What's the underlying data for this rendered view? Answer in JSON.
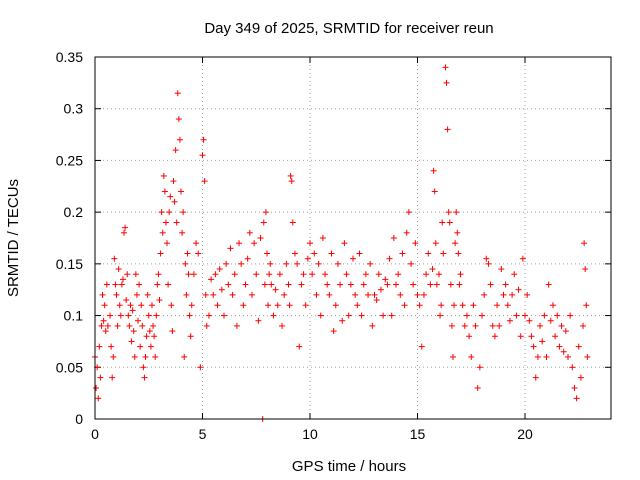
{
  "chart_data": {
    "type": "scatter",
    "title": "Day 349 of 2025, SRMTID for receiver reun",
    "xlabel": "GPS time / hours",
    "ylabel": "SRMTID / TECUs",
    "xlim": [
      0,
      24
    ],
    "ylim": [
      0,
      0.35
    ],
    "xticks": [
      0,
      5,
      10,
      15,
      20
    ],
    "xtick_labels": [
      "0",
      "5",
      "10",
      "15",
      "20"
    ],
    "yticks": [
      0,
      0.05,
      0.1,
      0.15,
      0.2,
      0.25,
      0.3,
      0.35
    ],
    "ytick_labels": [
      "0",
      "0.05",
      "0.1",
      "0.15",
      "0.2",
      "0.25",
      "0.3",
      "0.35"
    ],
    "grid": true,
    "marker": "+",
    "color": "#ff0000",
    "series": [
      {
        "name": "SRMTID",
        "points": [
          [
            0.0,
            0.06
          ],
          [
            0.05,
            0.03
          ],
          [
            0.1,
            0.05
          ],
          [
            0.15,
            0.02
          ],
          [
            0.2,
            0.07
          ],
          [
            0.25,
            0.04
          ],
          [
            0.3,
            0.09
          ],
          [
            0.35,
            0.12
          ],
          [
            0.4,
            0.095
          ],
          [
            0.45,
            0.11
          ],
          [
            0.5,
            0.085
          ],
          [
            0.55,
            0.13
          ],
          [
            0.6,
            0.09
          ],
          [
            0.7,
            0.1
          ],
          [
            0.75,
            0.07
          ],
          [
            0.8,
            0.04
          ],
          [
            0.85,
            0.06
          ],
          [
            0.9,
            0.155
          ],
          [
            0.95,
            0.13
          ],
          [
            1.0,
            0.12
          ],
          [
            1.05,
            0.09
          ],
          [
            1.1,
            0.145
          ],
          [
            1.15,
            0.11
          ],
          [
            1.2,
            0.1
          ],
          [
            1.25,
            0.13
          ],
          [
            1.3,
            0.135
          ],
          [
            1.35,
            0.18
          ],
          [
            1.4,
            0.185
          ],
          [
            1.45,
            0.115
          ],
          [
            1.5,
            0.14
          ],
          [
            1.55,
            0.1
          ],
          [
            1.6,
            0.09
          ],
          [
            1.65,
            0.11
          ],
          [
            1.7,
            0.075
          ],
          [
            1.75,
            0.105
          ],
          [
            1.8,
            0.085
          ],
          [
            1.85,
            0.06
          ],
          [
            1.9,
            0.14
          ],
          [
            1.95,
            0.12
          ],
          [
            2.0,
            0.095
          ],
          [
            2.05,
            0.13
          ],
          [
            2.1,
            0.07
          ],
          [
            2.15,
            0.11
          ],
          [
            2.2,
            0.09
          ],
          [
            2.25,
            0.05
          ],
          [
            2.3,
            0.04
          ],
          [
            2.35,
            0.06
          ],
          [
            2.4,
            0.08
          ],
          [
            2.45,
            0.12
          ],
          [
            2.5,
            0.1
          ],
          [
            2.55,
            0.085
          ],
          [
            2.6,
            0.07
          ],
          [
            2.65,
            0.11
          ],
          [
            2.7,
            0.09
          ],
          [
            2.75,
            0.08
          ],
          [
            2.8,
            0.06
          ],
          [
            2.85,
            0.1
          ],
          [
            2.9,
            0.13
          ],
          [
            2.95,
            0.14
          ],
          [
            3.0,
            0.115
          ],
          [
            3.05,
            0.16
          ],
          [
            3.1,
            0.2
          ],
          [
            3.15,
            0.18
          ],
          [
            3.2,
            0.235
          ],
          [
            3.25,
            0.22
          ],
          [
            3.3,
            0.19
          ],
          [
            3.35,
            0.17
          ],
          [
            3.4,
            0.13
          ],
          [
            3.45,
            0.2
          ],
          [
            3.5,
            0.215
          ],
          [
            3.55,
            0.11
          ],
          [
            3.6,
            0.085
          ],
          [
            3.65,
            0.23
          ],
          [
            3.7,
            0.21
          ],
          [
            3.75,
            0.26
          ],
          [
            3.8,
            0.19
          ],
          [
            3.85,
            0.315
          ],
          [
            3.9,
            0.29
          ],
          [
            3.95,
            0.27
          ],
          [
            4.0,
            0.22
          ],
          [
            4.05,
            0.18
          ],
          [
            4.1,
            0.2
          ],
          [
            4.15,
            0.06
          ],
          [
            4.2,
            0.15
          ],
          [
            4.25,
            0.12
          ],
          [
            4.3,
            0.16
          ],
          [
            4.35,
            0.14
          ],
          [
            4.4,
            0.1
          ],
          [
            4.45,
            0.08
          ],
          [
            4.5,
            0.11
          ],
          [
            4.6,
            0.14
          ],
          [
            4.7,
            0.17
          ],
          [
            4.8,
            0.16
          ],
          [
            4.9,
            0.05
          ],
          [
            5.0,
            0.255
          ],
          [
            5.05,
            0.27
          ],
          [
            5.1,
            0.23
          ],
          [
            5.15,
            0.12
          ],
          [
            5.2,
            0.09
          ],
          [
            5.3,
            0.1
          ],
          [
            5.4,
            0.135
          ],
          [
            5.5,
            0.12
          ],
          [
            5.6,
            0.14
          ],
          [
            5.7,
            0.11
          ],
          [
            5.8,
            0.145
          ],
          [
            5.9,
            0.125
          ],
          [
            6.0,
            0.1
          ],
          [
            6.1,
            0.15
          ],
          [
            6.2,
            0.13
          ],
          [
            6.3,
            0.165
          ],
          [
            6.4,
            0.12
          ],
          [
            6.5,
            0.14
          ],
          [
            6.6,
            0.09
          ],
          [
            6.7,
            0.17
          ],
          [
            6.8,
            0.15
          ],
          [
            6.9,
            0.11
          ],
          [
            7.0,
            0.13
          ],
          [
            7.1,
            0.155
          ],
          [
            7.2,
            0.18
          ],
          [
            7.3,
            0.12
          ],
          [
            7.4,
            0.17
          ],
          [
            7.5,
            0.14
          ],
          [
            7.6,
            0.095
          ],
          [
            7.7,
            0.175
          ],
          [
            7.8,
            0.0
          ],
          [
            7.85,
            0.19
          ],
          [
            7.9,
            0.13
          ],
          [
            7.95,
            0.2
          ],
          [
            8.0,
            0.16
          ],
          [
            8.05,
            0.11
          ],
          [
            8.1,
            0.14
          ],
          [
            8.15,
            0.15
          ],
          [
            8.2,
            0.13
          ],
          [
            8.3,
            0.1
          ],
          [
            8.4,
            0.125
          ],
          [
            8.5,
            0.11
          ],
          [
            8.6,
            0.14
          ],
          [
            8.7,
            0.09
          ],
          [
            8.8,
            0.12
          ],
          [
            8.9,
            0.15
          ],
          [
            9.0,
            0.13
          ],
          [
            9.05,
            0.11
          ],
          [
            9.1,
            0.235
          ],
          [
            9.15,
            0.23
          ],
          [
            9.2,
            0.19
          ],
          [
            9.3,
            0.16
          ],
          [
            9.4,
            0.15
          ],
          [
            9.5,
            0.07
          ],
          [
            9.6,
            0.13
          ],
          [
            9.7,
            0.14
          ],
          [
            9.8,
            0.11
          ],
          [
            9.9,
            0.155
          ],
          [
            10.0,
            0.17
          ],
          [
            10.1,
            0.14
          ],
          [
            10.2,
            0.16
          ],
          [
            10.3,
            0.12
          ],
          [
            10.4,
            0.15
          ],
          [
            10.5,
            0.1
          ],
          [
            10.6,
            0.175
          ],
          [
            10.7,
            0.14
          ],
          [
            10.8,
            0.13
          ],
          [
            10.9,
            0.12
          ],
          [
            11.0,
            0.16
          ],
          [
            11.1,
            0.085
          ],
          [
            11.2,
            0.11
          ],
          [
            11.3,
            0.15
          ],
          [
            11.4,
            0.13
          ],
          [
            11.5,
            0.095
          ],
          [
            11.6,
            0.17
          ],
          [
            11.7,
            0.14
          ],
          [
            11.8,
            0.1
          ],
          [
            11.9,
            0.13
          ],
          [
            12.0,
            0.155
          ],
          [
            12.1,
            0.12
          ],
          [
            12.2,
            0.11
          ],
          [
            12.3,
            0.16
          ],
          [
            12.4,
            0.1
          ],
          [
            12.5,
            0.13
          ],
          [
            12.6,
            0.14
          ],
          [
            12.7,
            0.12
          ],
          [
            12.8,
            0.15
          ],
          [
            12.9,
            0.09
          ],
          [
            13.0,
            0.12
          ],
          [
            13.1,
            0.115
          ],
          [
            13.2,
            0.14
          ],
          [
            13.3,
            0.125
          ],
          [
            13.4,
            0.1
          ],
          [
            13.5,
            0.135
          ],
          [
            13.6,
            0.13
          ],
          [
            13.7,
            0.155
          ],
          [
            13.8,
            0.1
          ],
          [
            13.9,
            0.175
          ],
          [
            14.0,
            0.13
          ],
          [
            14.1,
            0.14
          ],
          [
            14.2,
            0.12
          ],
          [
            14.3,
            0.16
          ],
          [
            14.4,
            0.11
          ],
          [
            14.5,
            0.18
          ],
          [
            14.6,
            0.2
          ],
          [
            14.7,
            0.15
          ],
          [
            14.8,
            0.13
          ],
          [
            14.9,
            0.17
          ],
          [
            15.0,
            0.12
          ],
          [
            15.1,
            0.11
          ],
          [
            15.2,
            0.07
          ],
          [
            15.3,
            0.12
          ],
          [
            15.4,
            0.14
          ],
          [
            15.5,
            0.16
          ],
          [
            15.6,
            0.13
          ],
          [
            15.7,
            0.145
          ],
          [
            15.75,
            0.24
          ],
          [
            15.8,
            0.22
          ],
          [
            15.85,
            0.17
          ],
          [
            15.9,
            0.13
          ],
          [
            16.0,
            0.14
          ],
          [
            16.05,
            0.1
          ],
          [
            16.1,
            0.11
          ],
          [
            16.15,
            0.19
          ],
          [
            16.2,
            0.16
          ],
          [
            16.3,
            0.34
          ],
          [
            16.35,
            0.325
          ],
          [
            16.4,
            0.28
          ],
          [
            16.45,
            0.2
          ],
          [
            16.5,
            0.19
          ],
          [
            16.55,
            0.13
          ],
          [
            16.6,
            0.09
          ],
          [
            16.65,
            0.06
          ],
          [
            16.7,
            0.11
          ],
          [
            16.75,
            0.17
          ],
          [
            16.8,
            0.2
          ],
          [
            16.85,
            0.18
          ],
          [
            16.9,
            0.16
          ],
          [
            16.95,
            0.13
          ],
          [
            17.0,
            0.14
          ],
          [
            17.1,
            0.11
          ],
          [
            17.2,
            0.09
          ],
          [
            17.3,
            0.1
          ],
          [
            17.4,
            0.08
          ],
          [
            17.5,
            0.06
          ],
          [
            17.6,
            0.11
          ],
          [
            17.7,
            0.09
          ],
          [
            17.8,
            0.03
          ],
          [
            17.9,
            0.05
          ],
          [
            18.0,
            0.1
          ],
          [
            18.1,
            0.12
          ],
          [
            18.2,
            0.155
          ],
          [
            18.3,
            0.15
          ],
          [
            18.4,
            0.13
          ],
          [
            18.5,
            0.09
          ],
          [
            18.6,
            0.08
          ],
          [
            18.7,
            0.11
          ],
          [
            18.8,
            0.09
          ],
          [
            18.9,
            0.145
          ],
          [
            19.0,
            0.12
          ],
          [
            19.1,
            0.13
          ],
          [
            19.2,
            0.11
          ],
          [
            19.3,
            0.095
          ],
          [
            19.4,
            0.12
          ],
          [
            19.5,
            0.14
          ],
          [
            19.6,
            0.1
          ],
          [
            19.7,
            0.125
          ],
          [
            19.8,
            0.08
          ],
          [
            19.9,
            0.155
          ],
          [
            20.0,
            0.1
          ],
          [
            20.1,
            0.12
          ],
          [
            20.2,
            0.095
          ],
          [
            20.3,
            0.08
          ],
          [
            20.4,
            0.07
          ],
          [
            20.5,
            0.04
          ],
          [
            20.6,
            0.06
          ],
          [
            20.7,
            0.09
          ],
          [
            20.8,
            0.075
          ],
          [
            20.9,
            0.1
          ],
          [
            21.0,
            0.06
          ],
          [
            21.1,
            0.13
          ],
          [
            21.2,
            0.095
          ],
          [
            21.3,
            0.11
          ],
          [
            21.4,
            0.08
          ],
          [
            21.5,
            0.1
          ],
          [
            21.6,
            0.07
          ],
          [
            21.7,
            0.09
          ],
          [
            21.8,
            0.065
          ],
          [
            21.9,
            0.085
          ],
          [
            22.0,
            0.06
          ],
          [
            22.1,
            0.1
          ],
          [
            22.2,
            0.05
          ],
          [
            22.3,
            0.03
          ],
          [
            22.4,
            0.02
          ],
          [
            22.5,
            0.07
          ],
          [
            22.6,
            0.04
          ],
          [
            22.7,
            0.09
          ],
          [
            22.75,
            0.17
          ],
          [
            22.8,
            0.145
          ],
          [
            22.85,
            0.11
          ],
          [
            22.9,
            0.06
          ]
        ]
      }
    ]
  }
}
